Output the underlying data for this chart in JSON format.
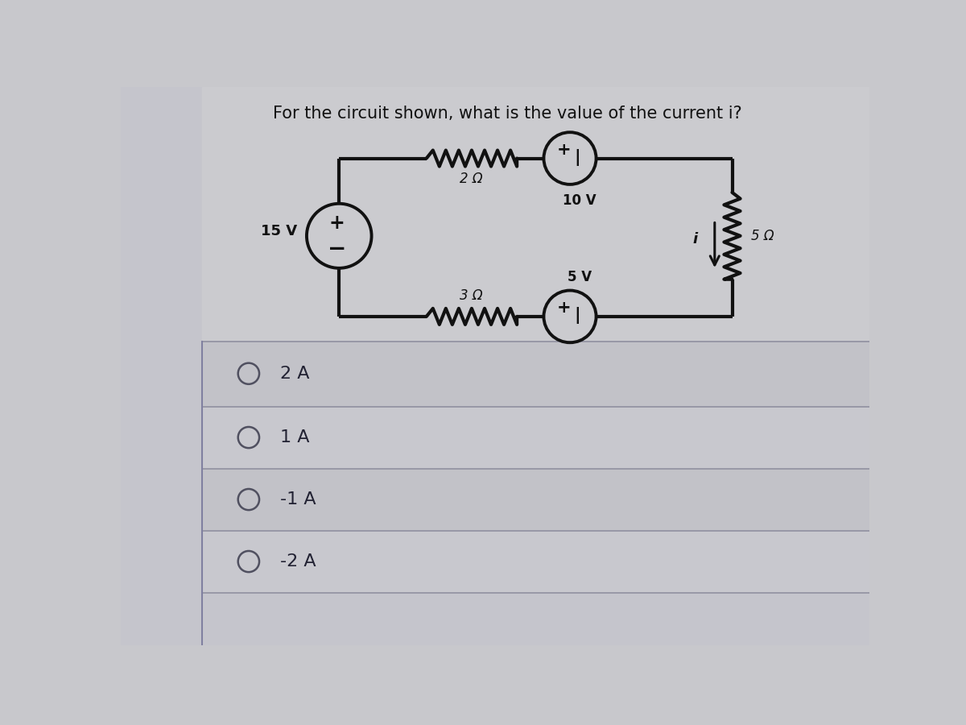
{
  "title_text": "For the circuit shown, what is the value of the current i?",
  "bg_top": "#c8c8cc",
  "bg_bottom": "#c0c0c8",
  "circuit_color": "#111111",
  "options": [
    "2 A",
    "1 A",
    "-1 A",
    "-2 A"
  ],
  "voltage_15": "15 V",
  "voltage_10": "10 V",
  "voltage_5": "5 V",
  "resistor_2": "2 Ω",
  "resistor_3": "3 Ω",
  "resistor_5": "5 Ω",
  "current_label": "i",
  "lw_circuit": 3.0,
  "lw_circle": 2.8
}
